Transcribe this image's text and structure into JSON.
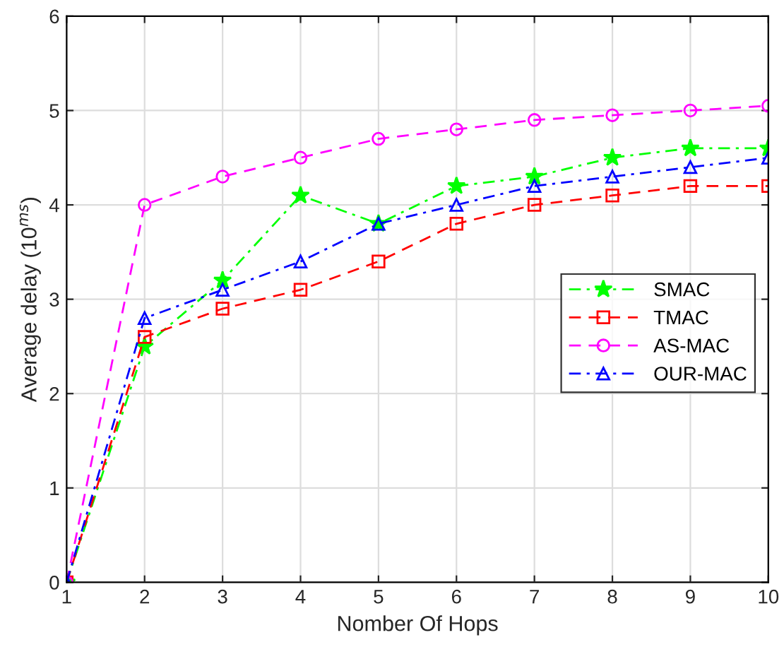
{
  "chart_data": {
    "type": "line",
    "xlabel": "Nomber Of Hops",
    "ylabel": "Average delay (10$^{ms}$)",
    "x": [
      1,
      2,
      3,
      4,
      5,
      6,
      7,
      8,
      9,
      10
    ],
    "xlim": [
      1,
      10
    ],
    "xticks": [
      1,
      2,
      3,
      4,
      5,
      6,
      7,
      8,
      9,
      10
    ],
    "ylim": [
      0,
      6
    ],
    "yticks": [
      0,
      1,
      2,
      3,
      4,
      5,
      6
    ],
    "grid": true,
    "legend": "right",
    "series": [
      {
        "name": "SMAC",
        "color": "#00ff00",
        "marker": "star",
        "line_style": "dashdot",
        "values": [
          0,
          2.5,
          3.2,
          4.1,
          3.8,
          4.2,
          4.3,
          4.5,
          4.6,
          4.6
        ]
      },
      {
        "name": "TMAC",
        "color": "#ff0000",
        "marker": "square",
        "line_style": "dashed",
        "values": [
          0,
          2.6,
          2.9,
          3.1,
          3.4,
          3.8,
          4.0,
          4.1,
          4.2,
          4.2
        ]
      },
      {
        "name": "AS-MAC",
        "color": "#ff00ff",
        "marker": "circle",
        "line_style": "dashed",
        "values": [
          0,
          4.0,
          4.3,
          4.5,
          4.7,
          4.8,
          4.9,
          4.95,
          5.0,
          5.05
        ]
      },
      {
        "name": "OUR-MAC",
        "color": "#0000ff",
        "marker": "triangle",
        "line_style": "dashdot",
        "values": [
          0,
          2.8,
          3.1,
          3.4,
          3.8,
          4.0,
          4.2,
          4.3,
          4.4,
          4.5
        ]
      }
    ]
  }
}
